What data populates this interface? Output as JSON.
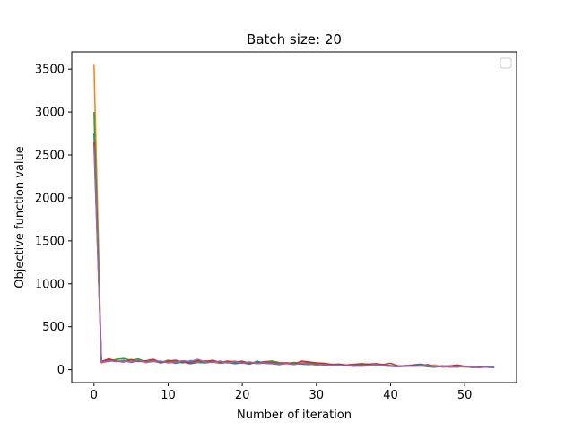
{
  "chart_data": {
    "type": "line",
    "title": "Batch size: 20",
    "xlabel": "Number of iteration",
    "ylabel": "Objective function value",
    "xlim": [
      -3,
      57
    ],
    "ylim": [
      -150,
      3700
    ],
    "xticks": [
      0,
      10,
      20,
      30,
      40,
      50
    ],
    "yticks": [
      0,
      500,
      1000,
      1500,
      2000,
      2500,
      3000,
      3500
    ],
    "grid": false,
    "legend": {
      "placement": "top-right",
      "entries": []
    },
    "series": [
      {
        "color": "#1f77b4",
        "x": [
          0,
          1,
          2,
          3,
          4,
          5,
          6,
          7,
          8,
          9,
          10,
          11,
          12,
          13,
          14,
          15,
          16,
          17,
          18,
          19,
          20,
          21,
          22,
          23,
          24,
          25,
          26,
          27,
          28,
          29,
          30,
          31,
          32,
          33,
          34,
          35,
          36,
          37,
          38,
          39,
          40,
          41,
          42,
          43,
          44,
          45,
          46,
          47,
          48,
          49,
          50,
          51,
          52,
          53,
          54
        ],
        "y": [
          2750,
          90,
          115,
          95,
          110,
          85,
          105,
          90,
          100,
          80,
          95,
          75,
          90,
          70,
          85,
          80,
          90,
          75,
          85,
          70,
          80,
          65,
          100,
          75,
          70,
          60,
          75,
          70,
          65,
          60,
          70,
          55,
          50,
          45,
          50,
          40,
          45,
          55,
          50,
          45,
          40,
          35,
          50,
          55,
          65,
          50,
          40,
          45,
          40,
          45,
          35,
          30,
          35,
          30,
          25
        ]
      },
      {
        "color": "#ff7f0e",
        "x": [
          0,
          1,
          2,
          3,
          4,
          5,
          6,
          7,
          8,
          9,
          10,
          11,
          12,
          13,
          14,
          15,
          16,
          17,
          18,
          19,
          20,
          21,
          22,
          23,
          24,
          25,
          26,
          27,
          28,
          29,
          30,
          31,
          32,
          33,
          34,
          35,
          36,
          37,
          38,
          39,
          40,
          41,
          42,
          43,
          44,
          45,
          46,
          47,
          48,
          49,
          50,
          51,
          52,
          53
        ],
        "y": [
          3550,
          80,
          100,
          110,
          95,
          120,
          100,
          85,
          110,
          95,
          90,
          105,
          85,
          100,
          90,
          105,
          95,
          80,
          95,
          100,
          85,
          90,
          80,
          95,
          100,
          85,
          80,
          75,
          90,
          80,
          70,
          75,
          65,
          60,
          55,
          65,
          60,
          55,
          50,
          60,
          45,
          40,
          50,
          45,
          40,
          45,
          55,
          30,
          35,
          40,
          30,
          35,
          25,
          30
        ]
      },
      {
        "color": "#2ca02c",
        "x": [
          0,
          1,
          2,
          3,
          4,
          5,
          6,
          7,
          8,
          9,
          10,
          11,
          12,
          13,
          14,
          15,
          16,
          17,
          18,
          19,
          20,
          21,
          22,
          23,
          24,
          25,
          26,
          27,
          28,
          29,
          30,
          31,
          32,
          33,
          34,
          35,
          36,
          37,
          38,
          39,
          40,
          41,
          42,
          43,
          44,
          45,
          46,
          47,
          48,
          49,
          50,
          51,
          52
        ],
        "y": [
          3000,
          100,
          95,
          120,
          130,
          110,
          125,
          90,
          100,
          85,
          110,
          95,
          80,
          105,
          100,
          85,
          95,
          90,
          80,
          85,
          100,
          70,
          85,
          90,
          100,
          80,
          75,
          85,
          70,
          80,
          65,
          70,
          55,
          65,
          50,
          55,
          60,
          50,
          45,
          55,
          50,
          35,
          40,
          45,
          50,
          35,
          30,
          40,
          35,
          30,
          40,
          25,
          30
        ]
      },
      {
        "color": "#d62728",
        "x": [
          0,
          1,
          2,
          3,
          4,
          5,
          6,
          7,
          8,
          9,
          10,
          11,
          12,
          13,
          14,
          15,
          16,
          17,
          18,
          19,
          20,
          21,
          22,
          23,
          24,
          25,
          26,
          27,
          28,
          29,
          30,
          31,
          32,
          33,
          34,
          35,
          36,
          37,
          38,
          39,
          40,
          41,
          42,
          43,
          44,
          45,
          46,
          47,
          48,
          49,
          50,
          51,
          52,
          53
        ],
        "y": [
          2650,
          95,
          125,
          100,
          90,
          115,
          95,
          105,
          120,
          85,
          100,
          110,
          90,
          85,
          105,
          95,
          110,
          85,
          100,
          90,
          95,
          80,
          75,
          90,
          85,
          70,
          80,
          65,
          100,
          90,
          80,
          75,
          60,
          65,
          55,
          60,
          70,
          65,
          70,
          60,
          75,
          45,
          40,
          50,
          45,
          60,
          35,
          40,
          45,
          55,
          40,
          35,
          30,
          35
        ]
      },
      {
        "color": "#9467bd",
        "x": [
          0,
          1,
          2,
          3,
          4,
          5,
          6,
          7,
          8,
          9,
          10,
          11,
          12,
          13,
          14,
          15,
          16,
          17,
          18,
          19,
          20,
          21,
          22,
          23,
          24,
          25,
          26,
          27,
          28,
          29,
          30,
          31,
          32,
          33,
          34,
          35,
          36,
          37,
          38,
          39,
          40,
          41,
          42,
          43,
          44,
          45,
          46,
          47,
          48,
          49,
          50,
          51,
          52,
          53,
          54
        ],
        "y": [
          2600,
          85,
          105,
          95,
          100,
          90,
          110,
          85,
          95,
          100,
          80,
          90,
          105,
          95,
          120,
          90,
          85,
          100,
          80,
          95,
          75,
          90,
          70,
          80,
          75,
          65,
          70,
          60,
          75,
          65,
          55,
          60,
          50,
          55,
          45,
          50,
          40,
          45,
          55,
          50,
          40,
          35,
          45,
          40,
          45,
          50,
          35,
          40,
          30,
          35,
          40,
          30,
          25,
          40,
          30
        ]
      }
    ]
  }
}
